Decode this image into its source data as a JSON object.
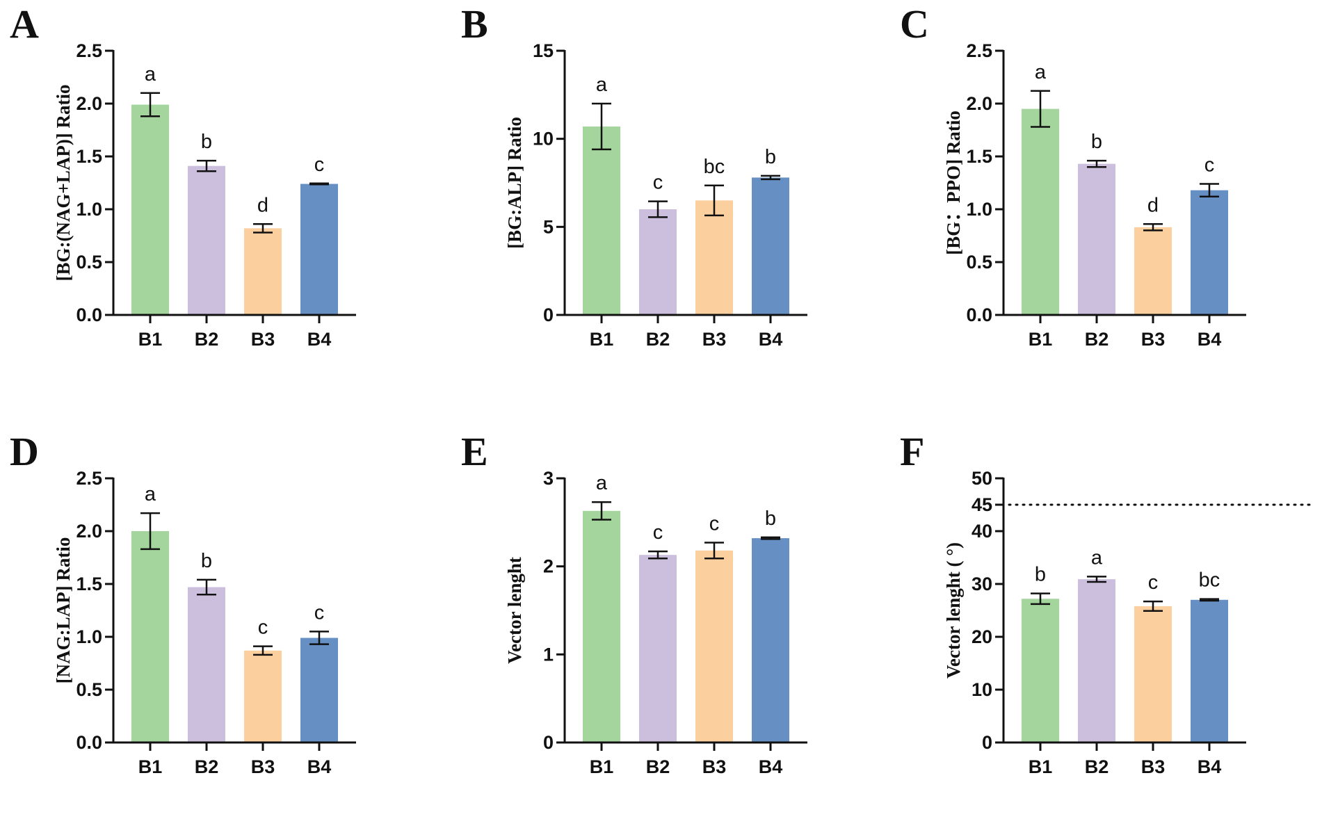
{
  "colors": {
    "B1": "#a3d59c",
    "B2": "#cbbfdd",
    "B3": "#fccf9e",
    "B4": "#6690c4"
  },
  "chart_data": [
    {
      "panel": "A",
      "type": "bar",
      "categories": [
        "B1",
        "B2",
        "B3",
        "B4"
      ],
      "values": [
        1.99,
        1.41,
        0.82,
        1.24
      ],
      "errors": [
        0.11,
        0.05,
        0.04,
        0.005
      ],
      "letters": [
        "a",
        "b",
        "d",
        "c"
      ],
      "ylabel": "[BG:(NAG+LAP)] Ratio",
      "ylim": [
        0,
        2.5
      ],
      "yticks": [
        "0.0",
        "0.5",
        "1.0",
        "1.5",
        "2.0",
        "2.5"
      ]
    },
    {
      "panel": "B",
      "type": "bar",
      "categories": [
        "B1",
        "B2",
        "B3",
        "B4"
      ],
      "values": [
        10.7,
        6.0,
        6.5,
        7.8
      ],
      "errors": [
        1.3,
        0.45,
        0.85,
        0.1
      ],
      "letters": [
        "a",
        "c",
        "bc",
        "b"
      ],
      "ylabel": "[BG:ALP] Ratio",
      "ylim": [
        0,
        15
      ],
      "yticks": [
        "0",
        "5",
        "10",
        "15"
      ]
    },
    {
      "panel": "C",
      "type": "bar",
      "categories": [
        "B1",
        "B2",
        "B3",
        "B4"
      ],
      "values": [
        1.95,
        1.43,
        0.83,
        1.18
      ],
      "errors": [
        0.17,
        0.03,
        0.03,
        0.06
      ],
      "letters": [
        "a",
        "b",
        "d",
        "c"
      ],
      "ylabel": "[BG：PPO] Ratio",
      "ylim": [
        0,
        2.5
      ],
      "yticks": [
        "0.0",
        "0.5",
        "1.0",
        "1.5",
        "2.0",
        "2.5"
      ]
    },
    {
      "panel": "D",
      "type": "bar",
      "categories": [
        "B1",
        "B2",
        "B3",
        "B4"
      ],
      "values": [
        2.0,
        1.47,
        0.87,
        0.99
      ],
      "errors": [
        0.17,
        0.07,
        0.04,
        0.06
      ],
      "letters": [
        "a",
        "b",
        "c",
        "c"
      ],
      "ylabel": "[NAG:LAP] Ratio",
      "ylim": [
        0,
        2.5
      ],
      "yticks": [
        "0.0",
        "0.5",
        "1.0",
        "1.5",
        "2.0",
        "2.5"
      ]
    },
    {
      "panel": "E",
      "type": "bar",
      "categories": [
        "B1",
        "B2",
        "B3",
        "B4"
      ],
      "values": [
        2.63,
        2.13,
        2.18,
        2.32
      ],
      "errors": [
        0.1,
        0.04,
        0.09,
        0.01
      ],
      "letters": [
        "a",
        "c",
        "c",
        "b"
      ],
      "ylabel": "Vector lenght",
      "ylim": [
        0,
        3
      ],
      "yticks": [
        "0",
        "1",
        "2",
        "3"
      ]
    },
    {
      "panel": "F",
      "type": "bar",
      "categories": [
        "B1",
        "B2",
        "B3",
        "B4"
      ],
      "values": [
        27.2,
        30.9,
        25.8,
        27.0
      ],
      "errors": [
        1.0,
        0.5,
        0.9,
        0.15
      ],
      "letters": [
        "b",
        "a",
        "c",
        "bc"
      ],
      "ylabel": "Vector lenght ( °)",
      "ylim": [
        0,
        50
      ],
      "yticks": [
        "0",
        "10",
        "20",
        "30",
        "40",
        "45",
        "50"
      ],
      "reference_line": 45
    }
  ]
}
